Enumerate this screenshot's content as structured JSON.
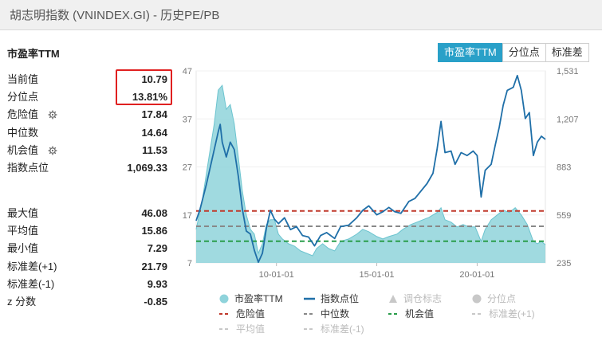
{
  "window": {
    "title": "胡志明指数 (VNINDEX.GI) - 历史PE/PB"
  },
  "section_title": "市盈率TTM",
  "stats_top": [
    {
      "label": "当前值",
      "value": "10.79",
      "icon": ""
    },
    {
      "label": "分位点",
      "value": "13.81%",
      "icon": ""
    },
    {
      "label": "危险值",
      "value": "17.84",
      "icon": "gear-icon"
    },
    {
      "label": "中位数",
      "value": "14.64",
      "icon": ""
    },
    {
      "label": "机会值",
      "value": "11.53",
      "icon": "gear-icon"
    },
    {
      "label": "指数点位",
      "value": "1,069.33",
      "icon": ""
    }
  ],
  "stats_bottom": [
    {
      "label": "最大值",
      "value": "46.08"
    },
    {
      "label": "平均值",
      "value": "15.86"
    },
    {
      "label": "最小值",
      "value": "7.29"
    },
    {
      "label": "标准差(+1)",
      "value": "21.79"
    },
    {
      "label": "标准差(-1)",
      "value": "9.93"
    },
    {
      "label": "z 分数",
      "value": "-0.85"
    }
  ],
  "tabs": [
    {
      "label": "市盈率TTM",
      "active": true
    },
    {
      "label": "分位点",
      "active": false
    },
    {
      "label": "标准差",
      "active": false
    }
  ],
  "legend": {
    "pe": "市盈率TTM",
    "index": "指数点位",
    "position_mark": "调仓标志",
    "percentile": "分位点",
    "danger": "危险值",
    "median": "中位数",
    "opportunity": "机会值",
    "std_plus": "标准差(+1)",
    "mean": "平均值",
    "std_minus": "标准差(-1)"
  },
  "colors": {
    "pe_fill": "#8fd3db",
    "index_line": "#1f6fa8",
    "danger": "#c0392b",
    "median": "#888888",
    "opportunity": "#2a9d4b",
    "accent": "#29a0c8"
  },
  "chart_data": {
    "type": "area",
    "x_ticks": [
      "10-01-01",
      "15-01-01",
      "20-01-01"
    ],
    "x_tick_years": [
      2010,
      2015,
      2020
    ],
    "x_range": [
      2006.0,
      2023.4
    ],
    "left_axis": {
      "ticks": [
        "7",
        "17",
        "27",
        "37",
        "47"
      ],
      "range": [
        7,
        47
      ]
    },
    "right_axis": {
      "ticks": [
        "235",
        "559",
        "883",
        "1,207",
        "1,531"
      ],
      "range": [
        235,
        1531
      ]
    },
    "reference_lines": {
      "danger": 17.84,
      "median": 14.64,
      "opportunity": 11.53
    },
    "series": [
      {
        "name": "市盈率TTM",
        "axis": "left",
        "points": [
          [
            2006.0,
            14
          ],
          [
            2006.3,
            20
          ],
          [
            2006.6,
            28
          ],
          [
            2006.9,
            36
          ],
          [
            2007.1,
            43
          ],
          [
            2007.3,
            44
          ],
          [
            2007.5,
            39
          ],
          [
            2007.7,
            40
          ],
          [
            2007.9,
            36
          ],
          [
            2008.1,
            29
          ],
          [
            2008.3,
            22
          ],
          [
            2008.5,
            17
          ],
          [
            2008.7,
            14
          ],
          [
            2008.9,
            13
          ],
          [
            2009.1,
            9
          ],
          [
            2009.3,
            11
          ],
          [
            2009.5,
            15
          ],
          [
            2009.7,
            16
          ],
          [
            2009.9,
            16
          ],
          [
            2010.1,
            13
          ],
          [
            2010.3,
            12
          ],
          [
            2010.6,
            11
          ],
          [
            2010.9,
            10.5
          ],
          [
            2011.2,
            9.5
          ],
          [
            2011.5,
            9
          ],
          [
            2011.8,
            8.5
          ],
          [
            2012.0,
            10
          ],
          [
            2012.3,
            11
          ],
          [
            2012.6,
            10
          ],
          [
            2012.9,
            9.5
          ],
          [
            2013.2,
            11.5
          ],
          [
            2013.6,
            12
          ],
          [
            2014.0,
            13
          ],
          [
            2014.3,
            14
          ],
          [
            2014.6,
            13.5
          ],
          [
            2015.0,
            12.5
          ],
          [
            2015.3,
            12
          ],
          [
            2015.6,
            12.5
          ],
          [
            2016.0,
            13
          ],
          [
            2016.3,
            14
          ],
          [
            2016.7,
            15
          ],
          [
            2017.0,
            15.5
          ],
          [
            2017.3,
            16
          ],
          [
            2017.6,
            16.5
          ],
          [
            2018.0,
            17.5
          ],
          [
            2018.2,
            18.5
          ],
          [
            2018.4,
            16
          ],
          [
            2018.7,
            15.5
          ],
          [
            2019.0,
            14.5
          ],
          [
            2019.3,
            15
          ],
          [
            2019.6,
            14.5
          ],
          [
            2019.9,
            14.5
          ],
          [
            2020.2,
            11.5
          ],
          [
            2020.4,
            14
          ],
          [
            2020.7,
            16
          ],
          [
            2021.0,
            17
          ],
          [
            2021.3,
            18
          ],
          [
            2021.6,
            17.5
          ],
          [
            2021.9,
            18.5
          ],
          [
            2022.2,
            17
          ],
          [
            2022.5,
            15
          ],
          [
            2022.8,
            11.5
          ],
          [
            2023.0,
            11
          ],
          [
            2023.2,
            11.5
          ],
          [
            2023.4,
            10.79
          ]
        ]
      },
      {
        "name": "指数点位",
        "axis": "right",
        "points": [
          [
            2006.0,
            520
          ],
          [
            2006.2,
            600
          ],
          [
            2006.5,
            760
          ],
          [
            2006.9,
            1000
          ],
          [
            2007.1,
            1120
          ],
          [
            2007.2,
            1170
          ],
          [
            2007.3,
            1050
          ],
          [
            2007.5,
            950
          ],
          [
            2007.7,
            1050
          ],
          [
            2007.9,
            1000
          ],
          [
            2008.1,
            820
          ],
          [
            2008.3,
            600
          ],
          [
            2008.5,
            450
          ],
          [
            2008.7,
            430
          ],
          [
            2008.9,
            320
          ],
          [
            2009.1,
            240
          ],
          [
            2009.3,
            300
          ],
          [
            2009.5,
            470
          ],
          [
            2009.7,
            590
          ],
          [
            2009.9,
            530
          ],
          [
            2010.1,
            500
          ],
          [
            2010.4,
            540
          ],
          [
            2010.7,
            460
          ],
          [
            2011.0,
            480
          ],
          [
            2011.3,
            420
          ],
          [
            2011.6,
            410
          ],
          [
            2011.9,
            350
          ],
          [
            2012.2,
            420
          ],
          [
            2012.5,
            440
          ],
          [
            2012.9,
            400
          ],
          [
            2013.2,
            480
          ],
          [
            2013.6,
            490
          ],
          [
            2014.0,
            540
          ],
          [
            2014.3,
            590
          ],
          [
            2014.6,
            620
          ],
          [
            2015.0,
            560
          ],
          [
            2015.3,
            580
          ],
          [
            2015.6,
            610
          ],
          [
            2015.9,
            580
          ],
          [
            2016.2,
            570
          ],
          [
            2016.6,
            650
          ],
          [
            2016.9,
            670
          ],
          [
            2017.2,
            720
          ],
          [
            2017.5,
            770
          ],
          [
            2017.8,
            840
          ],
          [
            2018.0,
            1000
          ],
          [
            2018.2,
            1190
          ],
          [
            2018.4,
            980
          ],
          [
            2018.7,
            990
          ],
          [
            2018.9,
            900
          ],
          [
            2019.2,
            980
          ],
          [
            2019.5,
            960
          ],
          [
            2019.8,
            990
          ],
          [
            2020.0,
            960
          ],
          [
            2020.2,
            680
          ],
          [
            2020.4,
            860
          ],
          [
            2020.7,
            900
          ],
          [
            2020.9,
            1030
          ],
          [
            2021.1,
            1150
          ],
          [
            2021.3,
            1300
          ],
          [
            2021.5,
            1400
          ],
          [
            2021.8,
            1420
          ],
          [
            2022.0,
            1500
          ],
          [
            2022.2,
            1400
          ],
          [
            2022.4,
            1210
          ],
          [
            2022.6,
            1250
          ],
          [
            2022.8,
            960
          ],
          [
            2023.0,
            1050
          ],
          [
            2023.2,
            1090
          ],
          [
            2023.4,
            1069.33
          ]
        ]
      }
    ]
  }
}
